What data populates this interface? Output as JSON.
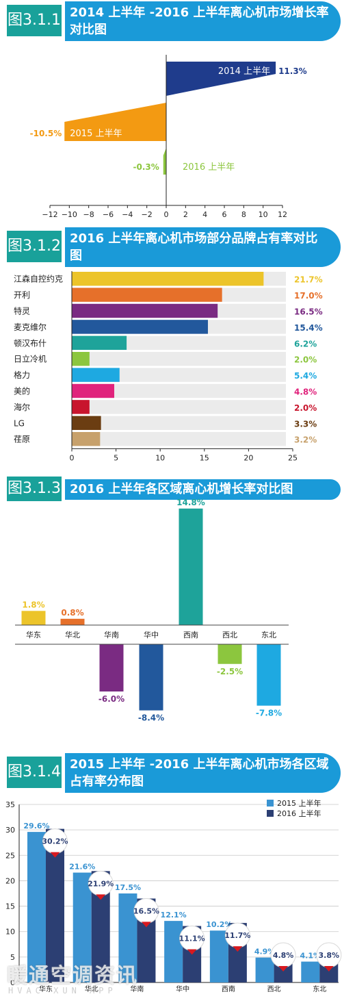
{
  "colors": {
    "header_blue": "#1a9ad8",
    "header_teal": "#19a19a"
  },
  "figures": [
    {
      "tag": "图3.1.1",
      "title": "2014 上半年 -2016 上半年离心机市场增长率对比图"
    },
    {
      "tag": "图3.1.2",
      "title": "2016 上半年离心机市场部分品牌占有率对比图"
    },
    {
      "tag": "图3.1.3",
      "title": "2016 上半年各区域离心机增长率对比图"
    },
    {
      "tag": "图3.1.4",
      "title": "2015 上半年 -2016 上半年离心机市场各区域占有率分布图"
    }
  ],
  "watermark": {
    "main": "暖通空调资讯",
    "sub": "HVAC XUN APP"
  },
  "chart_data": [
    {
      "type": "bar",
      "orientation": "horizontal",
      "categories": [
        "2014 上半年",
        "2015 上半年",
        "2016 上半年"
      ],
      "values": [
        11.3,
        -10.5,
        -0.3
      ],
      "value_labels": [
        "11.3%",
        "-10.5%",
        "-0.3%"
      ],
      "colors": [
        "#1f3c8c",
        "#f39a12",
        "#8cc63e"
      ],
      "xlim": [
        -12,
        12
      ],
      "xticks": [
        "−12",
        "−10",
        "−8",
        "−6",
        "−4",
        "−2",
        "0",
        "2",
        "4",
        "6",
        "8",
        "10",
        "12"
      ]
    },
    {
      "type": "bar",
      "orientation": "horizontal",
      "categories": [
        "江森自控约克",
        "开利",
        "特灵",
        "麦克维尔",
        "顿汉布什",
        "日立冷机",
        "格力",
        "美的",
        "海尔",
        "LG",
        "荏原"
      ],
      "values": [
        21.7,
        17.0,
        16.5,
        15.4,
        6.2,
        2.0,
        5.4,
        4.8,
        2.0,
        3.3,
        3.2
      ],
      "value_labels": [
        "21.7%",
        "17.0%",
        "16.5%",
        "15.4%",
        "6.2%",
        "2.0%",
        "5.4%",
        "4.8%",
        "2.0%",
        "3.3%",
        "3.2%"
      ],
      "colors": [
        "#ecc42a",
        "#e6702a",
        "#7a2b82",
        "#22589c",
        "#1ea39a",
        "#8cc63e",
        "#1ea9e1",
        "#e0237c",
        "#c8152d",
        "#6b3d12",
        "#c7a16c"
      ],
      "xlim": [
        0,
        25
      ],
      "xticks": [
        "0",
        "5",
        "10",
        "15",
        "20",
        "25"
      ]
    },
    {
      "type": "bar",
      "categories": [
        "华东",
        "华北",
        "华南",
        "华中",
        "西南",
        "西北",
        "东北"
      ],
      "values": [
        1.8,
        0.8,
        -6.0,
        -8.4,
        14.8,
        -2.5,
        -7.8
      ],
      "value_labels": [
        "1.8%",
        "0.8%",
        "-6.0%",
        "-8.4%",
        "14.8%",
        "-2.5%",
        "-7.8%"
      ],
      "colors": [
        "#ecc42a",
        "#e6702a",
        "#7a2b82",
        "#22589c",
        "#1ea39a",
        "#8cc63e",
        "#1ea9e1"
      ]
    },
    {
      "type": "bar",
      "categories": [
        "华东",
        "华北",
        "华南",
        "华中",
        "西南",
        "西北",
        "东北"
      ],
      "series": [
        {
          "name": "2015 上半年",
          "values": [
            29.6,
            21.6,
            17.5,
            12.1,
            10.2,
            4.9,
            4.1
          ],
          "labels": [
            "29.6%",
            "21.6%",
            "17.5%",
            "12.1%",
            "10.2%",
            "4.9%",
            "4.1%"
          ],
          "color": "#3a93d1"
        },
        {
          "name": "2016 上半年",
          "values": [
            30.2,
            21.9,
            16.5,
            11.1,
            11.7,
            4.8,
            3.8
          ],
          "labels": [
            "30.2%",
            "21.9%",
            "16.5%",
            "11.1%",
            "11.7%",
            "4.8%",
            "3.8%"
          ],
          "color": "#2c3f73"
        }
      ],
      "ylim": [
        0,
        35
      ],
      "yticks": [
        "0",
        "5",
        "10",
        "15",
        "20",
        "25",
        "30",
        "35"
      ],
      "legend": "top-right",
      "grid": true
    }
  ]
}
